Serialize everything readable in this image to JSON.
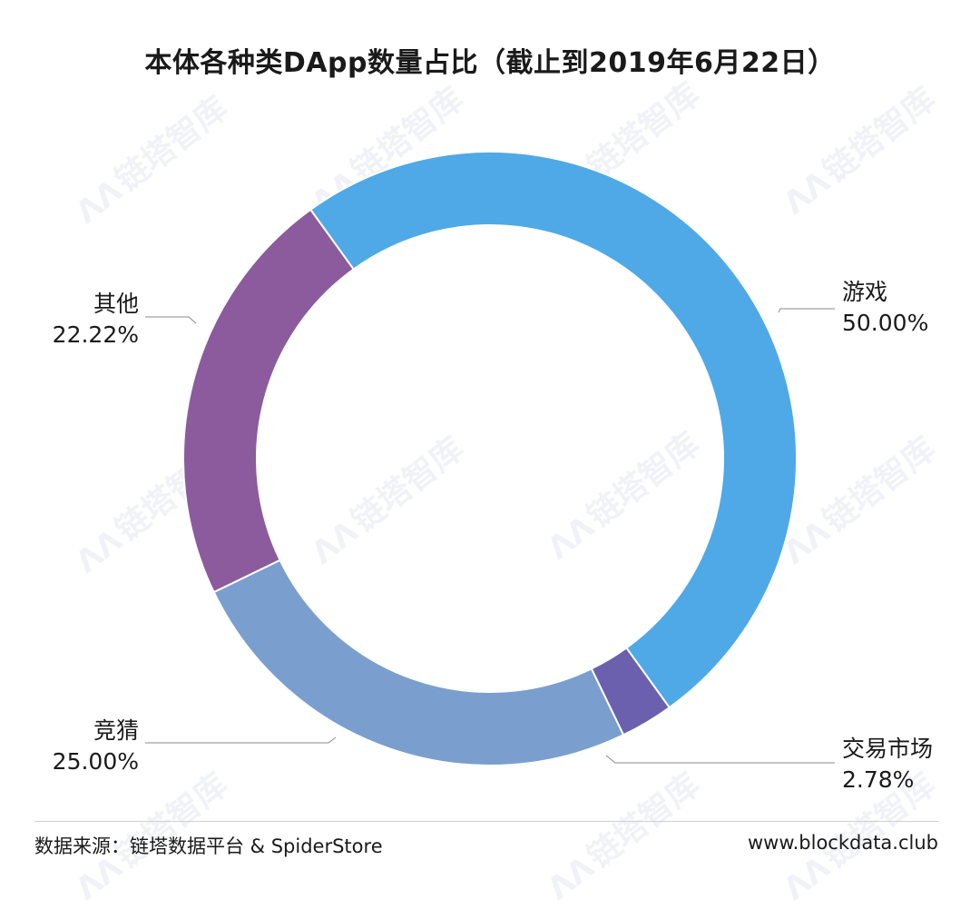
{
  "chart_data": {
    "type": "pie",
    "title": "本体各种类DApp数量占比（截止到2019年6月22日）",
    "slices": [
      {
        "name": "游戏",
        "value": 50.0,
        "label_pct": "50.00%",
        "color": "#4ea9e6",
        "side": "right"
      },
      {
        "name": "交易市场",
        "value": 2.78,
        "label_pct": "2.78%",
        "color": "#6b60ad",
        "side": "right"
      },
      {
        "name": "竞猜",
        "value": 25.0,
        "label_pct": "25.00%",
        "color": "#7a9fce",
        "side": "left"
      },
      {
        "name": "其他",
        "value": 22.22,
        "label_pct": "22.22%",
        "color": "#8b5b9d",
        "side": "left"
      }
    ],
    "donut": true
  },
  "footer": {
    "source": "数据来源：链塔数据平台 & SpiderStore",
    "site": "www.blockdata.club"
  },
  "watermark": {
    "text": "链塔智库",
    "mark": "ΛΛ"
  }
}
